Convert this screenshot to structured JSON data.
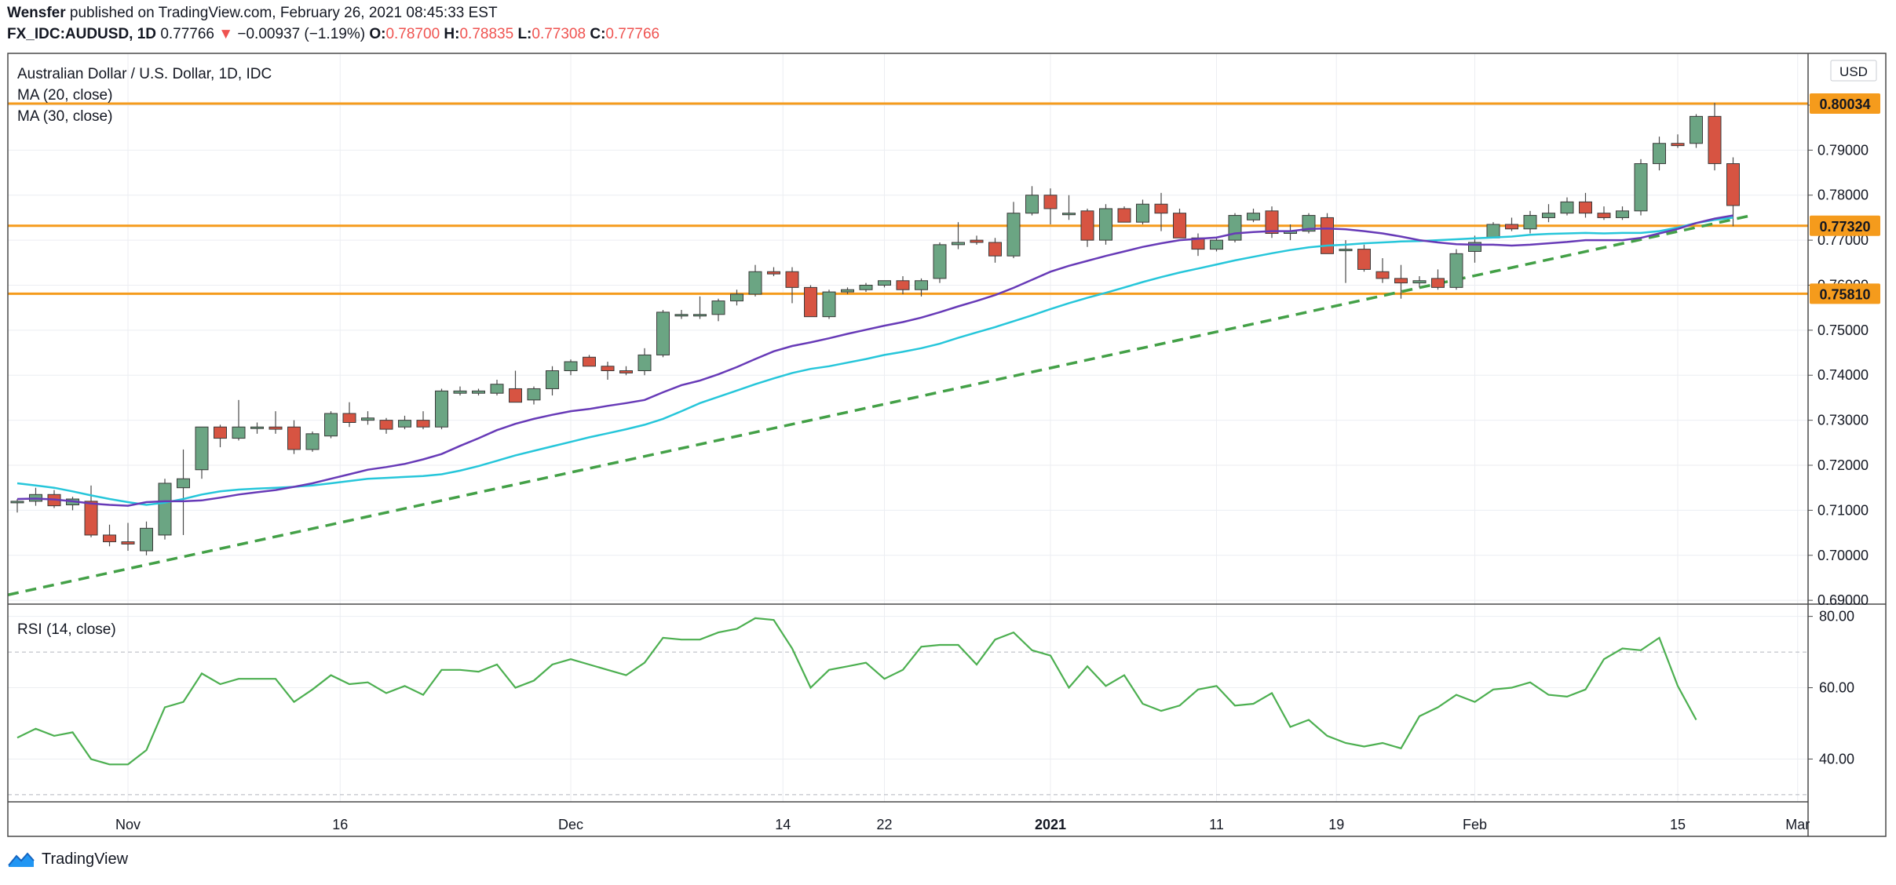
{
  "header": {
    "publisher": "Wensfer",
    "published_text": "published on TradingView.com, February 26, 2021 08:45:33 EST",
    "symbol": "FX_IDC:AUDUSD, 1D",
    "last": "0.77766",
    "change_arrow": "▼",
    "change": "−0.00937 (−1.19%)",
    "o_label": "O:",
    "o_value": "0.78700",
    "h_label": "H:",
    "h_value": "0.78835",
    "l_label": "L:",
    "l_value": "0.77308",
    "c_label": "C:",
    "c_value": "0.77766"
  },
  "legend": {
    "title": "Australian Dollar / U.S. Dollar, 1D, IDC",
    "ma20": "MA (20, close)",
    "ma30": "MA (30, close)",
    "rsi": "RSI (14, close)"
  },
  "currency_label": "USD",
  "footer": {
    "brand": "TradingView"
  },
  "colors": {
    "up": "#6ba583",
    "down": "#d75442",
    "ma20": "#673ab7",
    "ma30": "#26c6da",
    "rsi": "#4caf50",
    "hline": "#f59b1c",
    "trend": "#43a047",
    "price_tag": "#f59b1c"
  },
  "chart_data": {
    "type": "candlestick",
    "title": "Australian Dollar / U.S. Dollar, 1D, IDC",
    "x_tick_labels": [
      "Nov",
      "16",
      "Dec",
      "14",
      "22",
      "2021",
      "11",
      "19",
      "Feb",
      "15",
      "Mar"
    ],
    "y_tick_labels": [
      "0.69000",
      "0.70000",
      "0.71000",
      "0.72000",
      "0.73000",
      "0.74000",
      "0.75000",
      "0.76000",
      "0.77000",
      "0.78000",
      "0.79000",
      "0.80000"
    ],
    "ylim": [
      0.6895,
      0.8115
    ],
    "horizontal_levels": [
      {
        "value": 0.80034,
        "label": "0.80034"
      },
      {
        "value": 0.7732,
        "label": "0.77320"
      },
      {
        "value": 0.7581,
        "label": "0.75810"
      }
    ],
    "trendline": {
      "style": "dashed",
      "points": [
        [
          0,
          0.6912
        ],
        [
          94,
          0.7755
        ]
      ]
    },
    "candles": [
      [
        0.712,
        0.7125,
        0.7095,
        0.712
      ],
      [
        0.712,
        0.715,
        0.711,
        0.7135
      ],
      [
        0.7135,
        0.7145,
        0.7105,
        0.711
      ],
      [
        0.7112,
        0.713,
        0.71,
        0.7125
      ],
      [
        0.712,
        0.7155,
        0.704,
        0.7045
      ],
      [
        0.7045,
        0.7068,
        0.702,
        0.703
      ],
      [
        0.703,
        0.7072,
        0.701,
        0.7025
      ],
      [
        0.701,
        0.7075,
        0.7,
        0.706
      ],
      [
        0.7045,
        0.717,
        0.7035,
        0.716
      ],
      [
        0.715,
        0.7235,
        0.7045,
        0.717
      ],
      [
        0.719,
        0.7285,
        0.717,
        0.7285
      ],
      [
        0.7285,
        0.729,
        0.724,
        0.726
      ],
      [
        0.726,
        0.7345,
        0.7255,
        0.7285
      ],
      [
        0.7285,
        0.7295,
        0.727,
        0.7285
      ],
      [
        0.7285,
        0.732,
        0.727,
        0.728
      ],
      [
        0.7285,
        0.73,
        0.7225,
        0.7235
      ],
      [
        0.7235,
        0.7275,
        0.723,
        0.727
      ],
      [
        0.7265,
        0.732,
        0.726,
        0.7315
      ],
      [
        0.7315,
        0.734,
        0.7285,
        0.7295
      ],
      [
        0.73,
        0.732,
        0.729,
        0.7305
      ],
      [
        0.73,
        0.7305,
        0.727,
        0.728
      ],
      [
        0.7285,
        0.731,
        0.728,
        0.73
      ],
      [
        0.73,
        0.732,
        0.728,
        0.7285
      ],
      [
        0.7285,
        0.737,
        0.728,
        0.7365
      ],
      [
        0.736,
        0.7375,
        0.7355,
        0.7365
      ],
      [
        0.736,
        0.737,
        0.7355,
        0.7365
      ],
      [
        0.736,
        0.739,
        0.7355,
        0.738
      ],
      [
        0.737,
        0.741,
        0.7345,
        0.734
      ],
      [
        0.7345,
        0.7375,
        0.7335,
        0.737
      ],
      [
        0.737,
        0.742,
        0.7355,
        0.741
      ],
      [
        0.741,
        0.7435,
        0.74,
        0.743
      ],
      [
        0.744,
        0.7445,
        0.742,
        0.742
      ],
      [
        0.742,
        0.743,
        0.739,
        0.741
      ],
      [
        0.741,
        0.742,
        0.74,
        0.7405
      ],
      [
        0.741,
        0.746,
        0.74,
        0.7445
      ],
      [
        0.7445,
        0.7545,
        0.744,
        0.754
      ],
      [
        0.7535,
        0.7545,
        0.7525,
        0.7535
      ],
      [
        0.7535,
        0.7575,
        0.7525,
        0.7535
      ],
      [
        0.7535,
        0.757,
        0.752,
        0.7565
      ],
      [
        0.7565,
        0.759,
        0.7555,
        0.758
      ],
      [
        0.758,
        0.7645,
        0.7575,
        0.763
      ],
      [
        0.763,
        0.764,
        0.762,
        0.7625
      ],
      [
        0.763,
        0.764,
        0.756,
        0.7595
      ],
      [
        0.7595,
        0.76,
        0.753,
        0.753
      ],
      [
        0.753,
        0.759,
        0.7525,
        0.7585
      ],
      [
        0.7585,
        0.7595,
        0.758,
        0.759
      ],
      [
        0.759,
        0.7605,
        0.7585,
        0.76
      ],
      [
        0.76,
        0.761,
        0.7595,
        0.761
      ],
      [
        0.761,
        0.762,
        0.758,
        0.759
      ],
      [
        0.759,
        0.7615,
        0.7575,
        0.761
      ],
      [
        0.7615,
        0.7695,
        0.7605,
        0.769
      ],
      [
        0.769,
        0.774,
        0.768,
        0.7695
      ],
      [
        0.77,
        0.771,
        0.769,
        0.7695
      ],
      [
        0.7695,
        0.7705,
        0.765,
        0.7665
      ],
      [
        0.7665,
        0.7785,
        0.766,
        0.776
      ],
      [
        0.776,
        0.782,
        0.7755,
        0.78
      ],
      [
        0.78,
        0.7815,
        0.7735,
        0.777
      ],
      [
        0.776,
        0.78,
        0.7745,
        0.776
      ],
      [
        0.7765,
        0.777,
        0.7685,
        0.77
      ],
      [
        0.77,
        0.778,
        0.769,
        0.777
      ],
      [
        0.777,
        0.7775,
        0.774,
        0.774
      ],
      [
        0.774,
        0.779,
        0.7735,
        0.778
      ],
      [
        0.778,
        0.7805,
        0.772,
        0.776
      ],
      [
        0.776,
        0.777,
        0.7705,
        0.7705
      ],
      [
        0.7705,
        0.7715,
        0.7665,
        0.768
      ],
      [
        0.768,
        0.7705,
        0.7675,
        0.77
      ],
      [
        0.77,
        0.776,
        0.7695,
        0.7755
      ],
      [
        0.7745,
        0.777,
        0.774,
        0.776
      ],
      [
        0.7765,
        0.7775,
        0.7705,
        0.7715
      ],
      [
        0.7715,
        0.7735,
        0.77,
        0.772
      ],
      [
        0.772,
        0.776,
        0.7715,
        0.7755
      ],
      [
        0.775,
        0.776,
        0.767,
        0.767
      ],
      [
        0.768,
        0.77,
        0.7605,
        0.768
      ],
      [
        0.768,
        0.769,
        0.763,
        0.7635
      ],
      [
        0.763,
        0.766,
        0.7605,
        0.7615
      ],
      [
        0.7615,
        0.7645,
        0.757,
        0.7605
      ],
      [
        0.7605,
        0.762,
        0.7595,
        0.761
      ],
      [
        0.7615,
        0.7635,
        0.759,
        0.7595
      ],
      [
        0.7595,
        0.768,
        0.759,
        0.767
      ],
      [
        0.7675,
        0.771,
        0.765,
        0.7695
      ],
      [
        0.7705,
        0.774,
        0.7705,
        0.7735
      ],
      [
        0.7735,
        0.775,
        0.772,
        0.7725
      ],
      [
        0.7725,
        0.7765,
        0.7715,
        0.7755
      ],
      [
        0.775,
        0.778,
        0.774,
        0.776
      ],
      [
        0.776,
        0.7795,
        0.7755,
        0.7785
      ],
      [
        0.7785,
        0.7805,
        0.775,
        0.776
      ],
      [
        0.776,
        0.7775,
        0.7745,
        0.775
      ],
      [
        0.775,
        0.7775,
        0.7745,
        0.7765
      ],
      [
        0.7765,
        0.788,
        0.7755,
        0.787
      ],
      [
        0.787,
        0.793,
        0.7855,
        0.7915
      ],
      [
        0.7915,
        0.7935,
        0.7905,
        0.791
      ],
      [
        0.7915,
        0.798,
        0.7905,
        0.7975
      ],
      [
        0.7975,
        0.8005,
        0.7855,
        0.787
      ],
      [
        0.787,
        0.7884,
        0.7731,
        0.7777
      ]
    ],
    "ma20": [
      0.7125,
      0.7126,
      0.7124,
      0.712,
      0.7115,
      0.7112,
      0.711,
      0.7118,
      0.712,
      0.712,
      0.7122,
      0.7128,
      0.7135,
      0.714,
      0.7145,
      0.7152,
      0.716,
      0.717,
      0.718,
      0.719,
      0.7196,
      0.7203,
      0.7213,
      0.7225,
      0.7243,
      0.726,
      0.7278,
      0.7292,
      0.7303,
      0.7312,
      0.732,
      0.7325,
      0.7332,
      0.7338,
      0.7345,
      0.7362,
      0.7378,
      0.7388,
      0.7402,
      0.7418,
      0.7436,
      0.7453,
      0.7465,
      0.7473,
      0.7482,
      0.7492,
      0.7501,
      0.751,
      0.7518,
      0.7528,
      0.754,
      0.7553,
      0.7565,
      0.7578,
      0.7594,
      0.7612,
      0.763,
      0.7643,
      0.7654,
      0.7665,
      0.7675,
      0.7685,
      0.7693,
      0.77,
      0.7703,
      0.7706,
      0.7715,
      0.7718,
      0.772,
      0.772,
      0.7725,
      0.7726,
      0.7724,
      0.772,
      0.7715,
      0.7708,
      0.77,
      0.7695,
      0.7691,
      0.769,
      0.769,
      0.7688,
      0.769,
      0.7693,
      0.7696,
      0.77,
      0.77,
      0.77,
      0.7705,
      0.7715,
      0.7725,
      0.7738,
      0.7748,
      0.7755
    ],
    "ma30": [
      0.716,
      0.7155,
      0.715,
      0.7142,
      0.7133,
      0.7125,
      0.7118,
      0.7112,
      0.7117,
      0.7125,
      0.7135,
      0.7142,
      0.7146,
      0.7148,
      0.715,
      0.7152,
      0.7155,
      0.716,
      0.7165,
      0.717,
      0.7172,
      0.7174,
      0.7176,
      0.718,
      0.7188,
      0.7198,
      0.721,
      0.7222,
      0.7232,
      0.7242,
      0.7252,
      0.7262,
      0.7271,
      0.728,
      0.729,
      0.7303,
      0.732,
      0.7338,
      0.7352,
      0.7366,
      0.738,
      0.7393,
      0.7405,
      0.7414,
      0.742,
      0.7428,
      0.7436,
      0.7445,
      0.7452,
      0.746,
      0.747,
      0.7483,
      0.7495,
      0.7507,
      0.752,
      0.7533,
      0.7547,
      0.756,
      0.7572,
      0.7583,
      0.7595,
      0.7607,
      0.7618,
      0.7628,
      0.7637,
      0.7646,
      0.7655,
      0.7663,
      0.7671,
      0.7678,
      0.7684,
      0.7688,
      0.769,
      0.7693,
      0.7695,
      0.7697,
      0.7698,
      0.77,
      0.7702,
      0.7704,
      0.7706,
      0.7708,
      0.7712,
      0.7714,
      0.7715,
      0.7716,
      0.7715,
      0.7716,
      0.7716,
      0.772,
      0.7728,
      0.7738,
      0.7745,
      0.775
    ],
    "rsi": {
      "ylim": [
        28,
        83
      ],
      "y_tick_labels": [
        "40.00",
        "60.00",
        "80.00"
      ],
      "bands": [
        30,
        70
      ],
      "values": [
        46,
        48.5,
        46.5,
        47.5,
        40,
        38.5,
        38.5,
        42.5,
        54.5,
        56,
        64,
        61,
        62.5,
        62.5,
        62.5,
        56,
        59.5,
        63.5,
        61,
        61.5,
        58.5,
        60.5,
        58,
        65,
        65,
        64.5,
        66.5,
        60,
        62,
        66.5,
        68,
        66.5,
        65,
        63.5,
        67,
        74,
        73.5,
        73.5,
        75.5,
        76.5,
        79.5,
        79,
        71,
        60,
        65,
        66,
        67,
        62.5,
        65,
        71.5,
        72,
        72,
        66.5,
        73.5,
        75.5,
        70.5,
        69,
        60,
        66,
        60.5,
        63.5,
        55.5,
        53.5,
        55,
        59.5,
        60.5,
        55,
        55.5,
        58.5,
        49,
        51,
        46.5,
        44.5,
        43.5,
        44.5,
        43,
        52,
        54.5,
        58,
        56,
        59.5,
        60,
        61.5,
        58,
        57.5,
        59.5,
        68,
        71,
        70.5,
        74,
        60.5,
        51
      ]
    }
  }
}
